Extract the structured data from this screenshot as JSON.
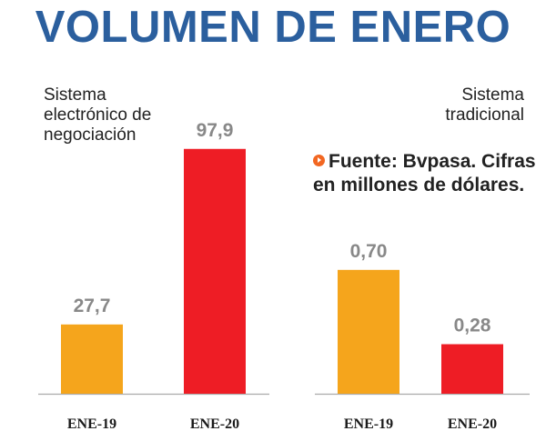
{
  "title": "VOLUMEN DE ENERO",
  "source_note": "Fuente: Bvpasa. Cifras en millones de dólares.",
  "colors": {
    "title": "#2b5f9e",
    "ene19": "#f5a51c",
    "ene20": "#ee1d25",
    "value_label": "#888888",
    "axis": "#aaaaaa",
    "source_icon": "#f26722"
  },
  "icons": {
    "source": "play-circle-icon"
  },
  "chart_data": [
    {
      "type": "bar",
      "title": "Sistema electrónico de negociación",
      "categories": [
        "ENE-19",
        "ENE-20"
      ],
      "values": [
        27.7,
        97.9
      ],
      "value_labels": [
        "27,7",
        "97,9"
      ],
      "ylim": [
        0,
        100
      ],
      "grid": false,
      "legend": "none"
    },
    {
      "type": "bar",
      "title": "Sistema tradicional",
      "categories": [
        "ENE-19",
        "ENE-20"
      ],
      "values": [
        0.7,
        0.28
      ],
      "value_labels": [
        "0,70",
        "0,28"
      ],
      "ylim": [
        0,
        1.1
      ],
      "grid": false,
      "legend": "none"
    }
  ]
}
